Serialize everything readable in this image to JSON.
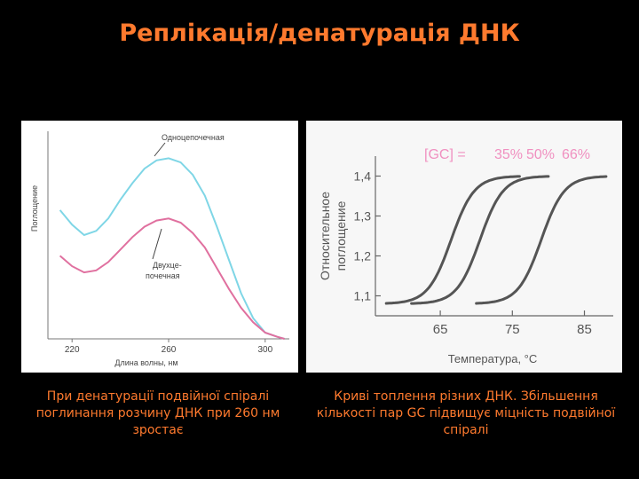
{
  "title": "Реплікація/денатурація ДНК",
  "colors": {
    "title": "#ff7a2e",
    "single": "#7fd6e6",
    "double": "#e0709f",
    "curve": "#555555",
    "gc": "#f090c0"
  },
  "chart_data": [
    {
      "type": "line",
      "xlabel": "Длина волны, нм",
      "ylabel": "Поглощение",
      "xticks": [
        220,
        260,
        300
      ],
      "xlim": [
        210,
        310
      ],
      "ylim": [
        0,
        1
      ],
      "series": [
        {
          "name": "Одноцепочечная",
          "x": [
            215,
            220,
            225,
            230,
            235,
            240,
            245,
            250,
            255,
            260,
            265,
            270,
            275,
            280,
            285,
            290,
            295,
            300,
            305,
            308
          ],
          "y": [
            0.62,
            0.55,
            0.5,
            0.52,
            0.58,
            0.67,
            0.75,
            0.82,
            0.86,
            0.87,
            0.85,
            0.79,
            0.69,
            0.54,
            0.38,
            0.22,
            0.1,
            0.03,
            0.01,
            0.0
          ]
        },
        {
          "name": "Двухцепочечная",
          "x": [
            215,
            220,
            225,
            230,
            235,
            240,
            245,
            250,
            255,
            260,
            265,
            270,
            275,
            280,
            285,
            290,
            295,
            300,
            305,
            308
          ],
          "y": [
            0.4,
            0.35,
            0.32,
            0.33,
            0.37,
            0.43,
            0.49,
            0.54,
            0.57,
            0.58,
            0.56,
            0.51,
            0.44,
            0.34,
            0.24,
            0.15,
            0.08,
            0.03,
            0.01,
            0.0
          ]
        }
      ],
      "labels": {
        "single": "Одноцепочечная",
        "double_line1": "Двухце-",
        "double_line2": "почечная"
      }
    },
    {
      "type": "line",
      "xlabel": "Температура, °С",
      "ylabel_line1": "Относительное",
      "ylabel_line2": "поглощение",
      "xticks": [
        65,
        75,
        85
      ],
      "yticks": [
        1.1,
        1.2,
        1.3,
        1.4
      ],
      "ytick_labels": [
        "1,1",
        "1,2",
        "1,3",
        "1,4"
      ],
      "xlim": [
        56,
        89
      ],
      "ylim": [
        1.05,
        1.45
      ],
      "legend_prefix": "[GC] =",
      "series": [
        {
          "name": "35%",
          "midpoint": 66.5,
          "x_start": 57.5,
          "x_end": 76
        },
        {
          "name": "50%",
          "midpoint": 70.5,
          "x_start": 61,
          "x_end": 80
        },
        {
          "name": "66%",
          "midpoint": 79.0,
          "x_start": 70,
          "x_end": 88
        }
      ],
      "y_low": 1.08,
      "y_high": 1.4
    }
  ],
  "captions": {
    "left": "При денатурації подвійної спіралі поглинання розчину ДНК при 260 нм зростає",
    "right": "Криві топлення різних ДНК. Збільшення кількості пар GC підвищує міцність подвійної спіралі"
  }
}
